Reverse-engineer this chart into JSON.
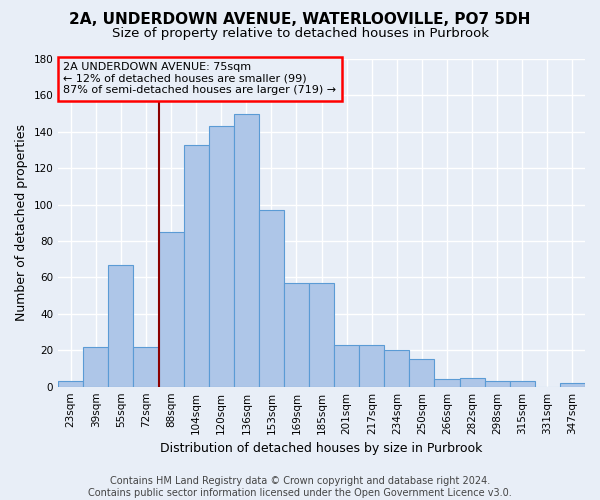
{
  "title": "2A, UNDERDOWN AVENUE, WATERLOOVILLE, PO7 5DH",
  "subtitle": "Size of property relative to detached houses in Purbrook",
  "xlabel": "Distribution of detached houses by size in Purbrook",
  "ylabel": "Number of detached properties",
  "categories": [
    "23sqm",
    "39sqm",
    "55sqm",
    "72sqm",
    "88sqm",
    "104sqm",
    "120sqm",
    "136sqm",
    "153sqm",
    "169sqm",
    "185sqm",
    "201sqm",
    "217sqm",
    "234sqm",
    "250sqm",
    "266sqm",
    "282sqm",
    "298sqm",
    "315sqm",
    "331sqm",
    "347sqm"
  ],
  "values": [
    3,
    22,
    67,
    22,
    85,
    133,
    143,
    150,
    97,
    57,
    57,
    23,
    23,
    20,
    15,
    4,
    5,
    3,
    3,
    0,
    2
  ],
  "bar_color": "#aec6e8",
  "bar_edge_color": "#5b9bd5",
  "ylim": [
    0,
    180
  ],
  "yticks": [
    0,
    20,
    40,
    60,
    80,
    100,
    120,
    140,
    160,
    180
  ],
  "property_label": "2A UNDERDOWN AVENUE: 75sqm",
  "pct_smaller": 12,
  "n_smaller": 99,
  "pct_larger_semi": 87,
  "n_larger_semi": 719,
  "red_line_x": 3.5,
  "footnote": "Contains HM Land Registry data © Crown copyright and database right 2024.\nContains public sector information licensed under the Open Government Licence v3.0.",
  "background_color": "#e8eef7",
  "grid_color": "#ffffff",
  "title_fontsize": 11,
  "subtitle_fontsize": 9.5,
  "axis_label_fontsize": 9,
  "tick_fontsize": 7.5,
  "annotation_fontsize": 8,
  "footnote_fontsize": 7
}
